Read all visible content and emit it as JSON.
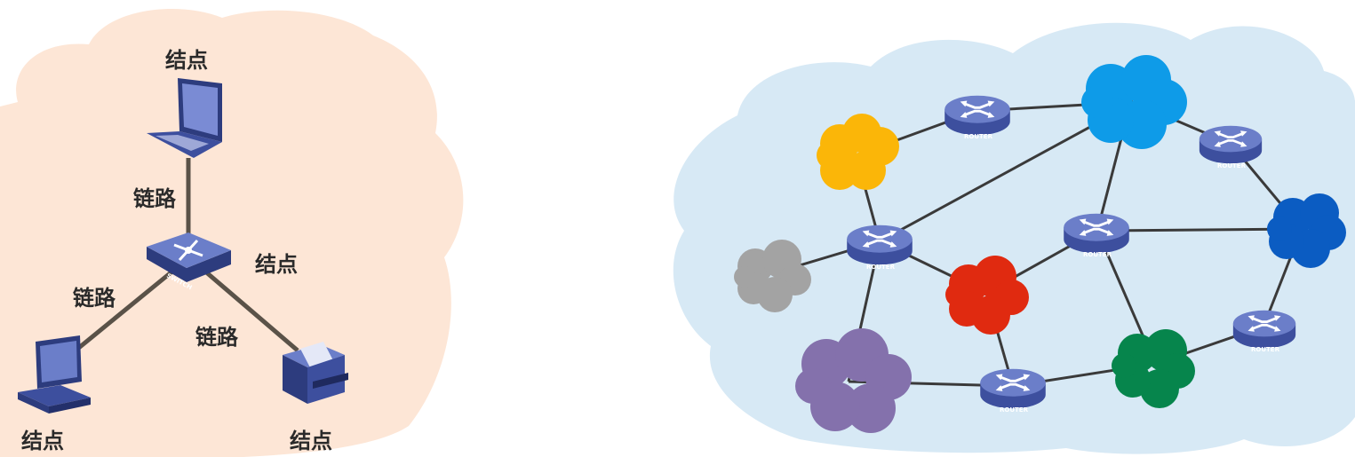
{
  "left_diagram": {
    "background_color": "#fde6d6",
    "node_label": "结点",
    "link_label": "链路",
    "switch_label": "SWITCH",
    "device_color": "#3d4f9e",
    "link_color": "#5a5248"
  },
  "right_diagram": {
    "background_color": "#d7e9f5",
    "router_label": "ROUTER",
    "network_colors": {
      "orange": "#fbb608",
      "blue": "#0e9be8",
      "dark_blue": "#0b5cc2",
      "gray": "#a3a3a3",
      "red": "#e02a10",
      "purple": "#8471ac",
      "green": "#06854c"
    },
    "link_color": "#3a3a3a"
  }
}
